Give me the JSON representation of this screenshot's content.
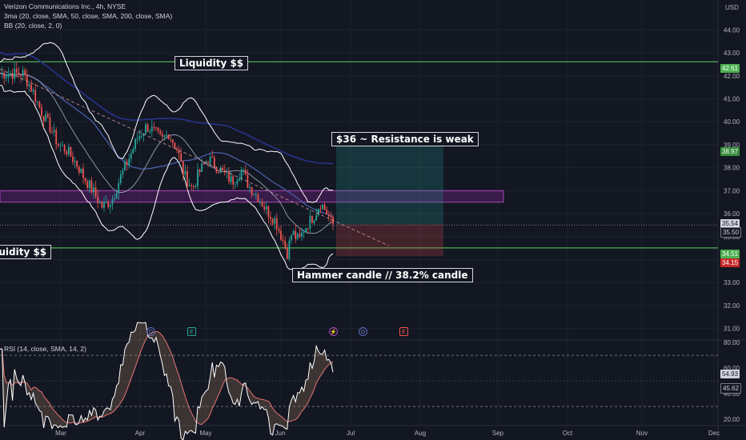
{
  "header": {
    "title": "Verizon Communications Inc., 4h, NYSE",
    "indicator_ma": "3ma (20, close, SMA, 50, close, SMA, 200, close, SMA)",
    "indicator_bb": "BB (20, close, 2, 0)",
    "currency": "USD"
  },
  "rsi": {
    "label": "RSI (14, close, SMA, 14, 2)",
    "value_tag": "54.93",
    "ma_tag": "45.62"
  },
  "annotations": {
    "liquidity_top": "Liquidity $$",
    "liquidity_bottom": "Liquidity $$",
    "resistance": "$36 ~ Resistance is weak",
    "hammer": "Hammer candle // 38.2% candle"
  },
  "price_tags": {
    "liquidity": "42.61",
    "target": "38.97",
    "current": "35.54",
    "crosshair": "35.50",
    "support": "34.51",
    "stop": "34.15"
  },
  "events": [
    "D",
    "E",
    "⚡",
    "D",
    "E"
  ],
  "colors": {
    "background": "#131722",
    "bull": "#26a69a",
    "bear": "#ef5350",
    "green_line": "#4caf50",
    "purple_zone": "#9c27b0",
    "bollinger": "#ffffff",
    "ma_dark_blue": "#283593",
    "ma_light_blue": "#4a5fa8",
    "rsi_line": "#ffffff",
    "rsi_ma": "#e57373"
  },
  "chart_data": [
    {
      "type": "candlestick",
      "title": "Verizon Communications Inc., 4h, NYSE",
      "ylabel": "USD",
      "x_ticks": [
        "Mar",
        "Apr",
        "May",
        "Jun",
        "Jul",
        "Aug",
        "Sep",
        "Oct",
        "Nov",
        "Dec"
      ],
      "y_ticks": [
        31.0,
        32.0,
        33.0,
        34.0,
        35.0,
        36.0,
        37.0,
        38.0,
        39.0,
        40.0,
        41.0,
        42.0,
        43.0,
        44.0
      ],
      "y_range": [
        30.5,
        45.3
      ],
      "trend_close_path": [
        [
          "Feb 14",
          42.1
        ],
        [
          "Feb 18",
          41.3
        ],
        [
          "Feb 21",
          40.5
        ],
        [
          "Feb 25",
          39.7
        ],
        [
          "Feb 28",
          39.0
        ],
        [
          "Mar 3",
          38.8
        ],
        [
          "Mar 7",
          38.2
        ],
        [
          "Mar 10",
          37.6
        ],
        [
          "Mar 14",
          36.9
        ],
        [
          "Mar 17",
          36.3
        ],
        [
          "Mar 21",
          36.6
        ],
        [
          "Mar 24",
          37.5
        ],
        [
          "Mar 28",
          38.5
        ],
        [
          "Mar 31",
          39.3
        ],
        [
          "Apr 4",
          39.8
        ],
        [
          "Apr 7",
          39.6
        ],
        [
          "Apr 11",
          39.2
        ],
        [
          "Apr 14",
          39.5
        ],
        [
          "Apr 18",
          38.8
        ],
        [
          "Apr 21",
          37.7
        ],
        [
          "Apr 25",
          37.1
        ],
        [
          "Apr 28",
          37.8
        ],
        [
          "May 2",
          38.4
        ],
        [
          "May 5",
          38.1
        ],
        [
          "May 9",
          37.7
        ],
        [
          "May 12",
          37.4
        ],
        [
          "May 16",
          37.9
        ],
        [
          "May 19",
          37.2
        ],
        [
          "May 23",
          36.7
        ],
        [
          "May 26",
          36.2
        ],
        [
          "May 30",
          35.7
        ],
        [
          "Jun 2",
          34.9
        ],
        [
          "Jun 4",
          34.3
        ],
        [
          "Jun 6",
          35.2
        ],
        [
          "Jun 9",
          34.8
        ],
        [
          "Jun 11",
          35.3
        ],
        [
          "Jun 13",
          35.6
        ],
        [
          "Jun 16",
          36.0
        ],
        [
          "Jun 18",
          36.5
        ],
        [
          "Jun 20",
          36.2
        ],
        [
          "Jun 22",
          35.8
        ],
        [
          "Jun 23",
          35.54
        ]
      ],
      "levels": {
        "liquidity_high": 42.61,
        "liquidity_low": 34.51,
        "resistance_zone": [
          36.5,
          37.0
        ]
      },
      "trade_box": {
        "entry": 35.54,
        "target": 38.97,
        "stop": 34.15
      }
    },
    {
      "type": "line",
      "title": "RSI (14, close, SMA, 14, 2)",
      "y_ticks": [
        20.0,
        40.0,
        60.0,
        80.0
      ],
      "y_range": [
        15,
        82
      ],
      "bands": [
        30,
        70
      ],
      "last_rsi": 54.93,
      "last_rsi_ma": 45.62
    }
  ]
}
